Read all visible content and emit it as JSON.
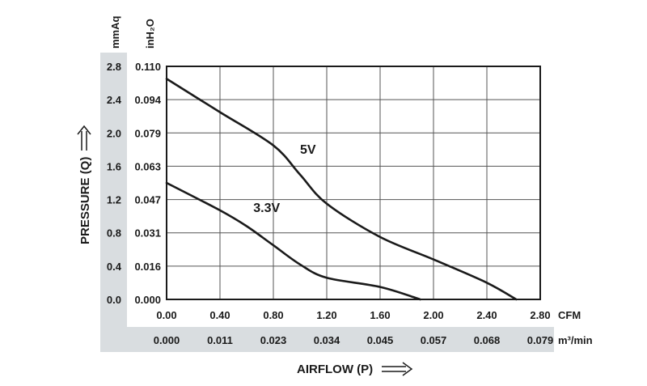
{
  "chart_data": {
    "type": "line",
    "xlabel": "AIRFLOW (P)",
    "ylabel": "PRESSURE (Q)",
    "x_unit_primary": "CFM",
    "x_unit_secondary": "m³/min",
    "y_unit_primary": "mmAq",
    "y_unit_secondary": "inH₂O",
    "xlim": [
      0,
      2.8
    ],
    "ylim": [
      0,
      2.8
    ],
    "x_ticks_primary": [
      "0.00",
      "0.40",
      "0.80",
      "1.20",
      "1.60",
      "2.00",
      "2.40",
      "2.80"
    ],
    "x_ticks_secondary": [
      "0.000",
      "0.011",
      "0.023",
      "0.034",
      "0.045",
      "0.057",
      "0.068",
      "0.079"
    ],
    "y_ticks_primary": [
      "0.0",
      "0.4",
      "0.8",
      "1.2",
      "1.6",
      "2.0",
      "2.4",
      "2.8"
    ],
    "y_ticks_secondary": [
      "0.000",
      "0.016",
      "0.031",
      "0.047",
      "0.063",
      "0.079",
      "0.094",
      "0.110"
    ],
    "grid": true,
    "series": [
      {
        "name": "5V",
        "x": [
          0.0,
          0.4,
          0.8,
          1.0,
          1.2,
          1.6,
          2.0,
          2.4,
          2.62
        ],
        "y": [
          2.65,
          2.25,
          1.85,
          1.5,
          1.15,
          0.75,
          0.48,
          0.2,
          0.0
        ]
      },
      {
        "name": "3.3V",
        "x": [
          0.0,
          0.4,
          0.6,
          0.8,
          1.0,
          1.2,
          1.6,
          1.9
        ],
        "y": [
          1.4,
          1.07,
          0.88,
          0.65,
          0.42,
          0.26,
          0.15,
          0.0
        ]
      }
    ],
    "series_label_pos": [
      {
        "x": 1.0,
        "y": 1.75
      },
      {
        "x": 0.65,
        "y": 1.05
      }
    ]
  },
  "colors": {
    "line": "#1a1a1a",
    "grid": "#555555",
    "panel": "#d9dde0"
  },
  "icons": {
    "y_arrow": "long-right-arrow-icon",
    "x_arrow": "long-right-arrow-icon"
  }
}
